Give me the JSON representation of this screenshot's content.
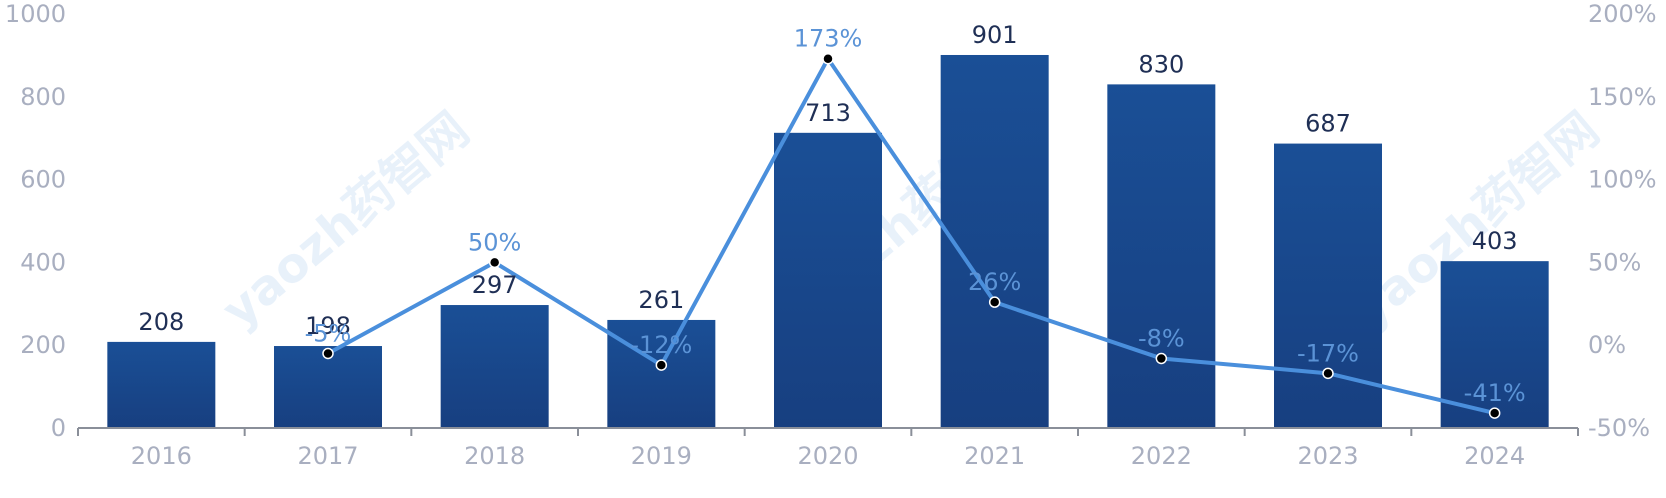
{
  "colors": {
    "bar_top": "#1a4f96",
    "bar_bottom": "#173f80",
    "line": "#4a8fdc",
    "marker": "#000000",
    "axis_text": "#a9afc0",
    "bar_label": "#1f2f55",
    "pct_label": "#5b93d6"
  },
  "watermark": "yaozh药智网",
  "chart_data": {
    "type": "bar",
    "categories": [
      "2016",
      "2017",
      "2018",
      "2019",
      "2020",
      "2021",
      "2022",
      "2023",
      "2024"
    ],
    "series": [
      {
        "type": "bar",
        "values": [
          208,
          198,
          297,
          261,
          713,
          901,
          830,
          687,
          403
        ],
        "labels": [
          "208",
          "198",
          "297",
          "261",
          "713",
          "901",
          "830",
          "687",
          "403"
        ]
      },
      {
        "type": "line",
        "axis": "right",
        "values": [
          null,
          -5,
          50,
          -12,
          173,
          26,
          -8,
          -17,
          -41
        ],
        "labels": [
          "",
          "-5%",
          "50%",
          "-12%",
          "173%",
          "26%",
          "-8%",
          "-17%",
          "-41%"
        ]
      }
    ],
    "ylim": [
      0,
      1000
    ],
    "y_ticks": [
      "0",
      "200",
      "400",
      "600",
      "800",
      "1000"
    ],
    "y2lim": [
      -50,
      200
    ],
    "y2_ticks": [
      "-50%",
      "0%",
      "50%",
      "100%",
      "150%",
      "200%"
    ],
    "grid": false,
    "legend": "none"
  }
}
